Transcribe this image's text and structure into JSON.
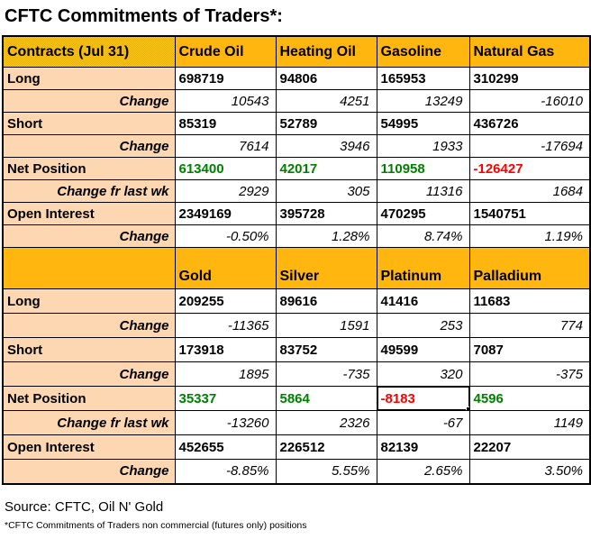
{
  "title": "CFTC Commitments of Traders*:",
  "source": "Source: CFTC, Oil N' Gold",
  "footnote": "*CFTC Commitments of Traders non commercial (futures only) positions",
  "colors": {
    "header_bg": "#FFB400",
    "label_bg": "#FCD7AF",
    "positive": "#008000",
    "negative": "#FF0000",
    "border": "#000000"
  },
  "selected_cell_note": "Platinum Net Position cell (-8183) shows spreadsheet selection border with fill handle",
  "chart_data": [
    {
      "type": "table",
      "title": "CFTC Commitments of Traders (energy futures)",
      "columns": [
        "Contracts (Jul 31)",
        "Crude Oil",
        "Heating Oil",
        "Gasoline",
        "Natural Gas"
      ],
      "rows": [
        [
          "Long",
          698719,
          94806,
          165953,
          310299
        ],
        [
          "Change",
          10543,
          4251,
          13249,
          -16010
        ],
        [
          "Short",
          85319,
          52789,
          54995,
          436726
        ],
        [
          "Change",
          7614,
          3946,
          1933,
          -17694
        ],
        [
          "Net Position",
          613400,
          42017,
          110958,
          -126427
        ],
        [
          "Change fr last wk",
          2929,
          305,
          11316,
          1684
        ],
        [
          "Open Interest",
          2349169,
          395728,
          470295,
          1540751
        ],
        [
          "Change",
          "-0.50%",
          "1.28%",
          "8.74%",
          "1.19%"
        ]
      ],
      "net_position_colors": [
        "green",
        "green",
        "green",
        "red"
      ]
    },
    {
      "type": "table",
      "title": "CFTC Commitments of Traders (metals futures)",
      "columns": [
        "",
        "Gold",
        "Silver",
        "Platinum",
        "Palladium"
      ],
      "rows": [
        [
          "Long",
          209255,
          89616,
          41416,
          11683
        ],
        [
          "Change",
          -11365,
          1591,
          253,
          774
        ],
        [
          "Short",
          173918,
          83752,
          49599,
          7087
        ],
        [
          "Change",
          1895,
          -735,
          320,
          -375
        ],
        [
          "Net Position",
          35337,
          5864,
          -8183,
          4596
        ],
        [
          "Change fr last wk",
          -13260,
          2326,
          -67,
          1149
        ],
        [
          "Open Interest",
          452655,
          226512,
          82139,
          22207
        ],
        [
          "Change",
          "-8.85%",
          "5.55%",
          "2.65%",
          "3.50%"
        ]
      ],
      "net_position_colors": [
        "green",
        "green",
        "red",
        "green"
      ]
    }
  ]
}
